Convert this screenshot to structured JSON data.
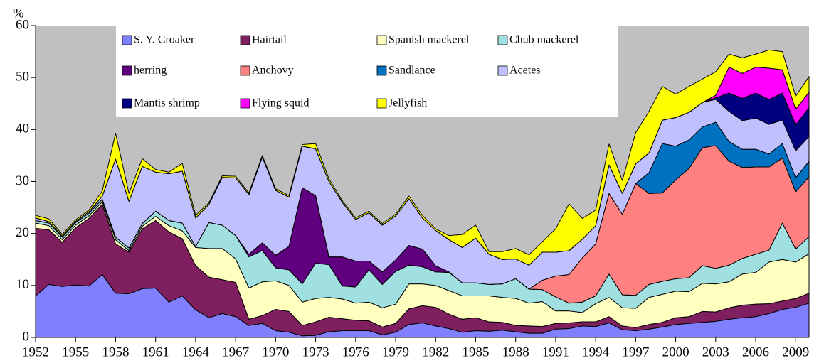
{
  "chart_data": {
    "type": "stacked_area",
    "y_label": "%",
    "x": [
      1952,
      1953,
      1954,
      1955,
      1956,
      1957,
      1958,
      1959,
      1960,
      1961,
      1962,
      1963,
      1964,
      1965,
      1966,
      1967,
      1968,
      1969,
      1970,
      1971,
      1972,
      1973,
      1974,
      1975,
      1976,
      1977,
      1978,
      1979,
      1980,
      1981,
      1982,
      1983,
      1984,
      1985,
      1986,
      1987,
      1988,
      1989,
      1990,
      1991,
      1992,
      1993,
      1994,
      1995,
      1996,
      1997,
      1998,
      1999,
      2000,
      2001,
      2002,
      2003,
      2004,
      2005,
      2006,
      2007,
      2008,
      2009,
      2010
    ],
    "xlim": [
      1952,
      2010
    ],
    "xticks": [
      1952,
      1955,
      1958,
      1961,
      1964,
      1967,
      1970,
      1973,
      1976,
      1979,
      1982,
      1985,
      1988,
      1991,
      1994,
      1997,
      2000,
      2003,
      2006,
      2009
    ],
    "ylim": [
      0,
      60
    ],
    "yticks": [
      0,
      10,
      20,
      30,
      40,
      50,
      60
    ],
    "series": [
      {
        "name": "S. Y. Croaker",
        "color": "#8080ff",
        "values": [
          8,
          10.2,
          9.8,
          10.1,
          9.9,
          12.1,
          8.5,
          8.4,
          9.4,
          9.5,
          6.8,
          8,
          5.3,
          3.8,
          4.6,
          4,
          2.3,
          2.7,
          1.3,
          1,
          0.3,
          0.4,
          1.1,
          1.3,
          1.3,
          1.3,
          0.5,
          1,
          2.5,
          2.8,
          2.2,
          1.7,
          1,
          1.3,
          1.2,
          1.4,
          1.1,
          0.8,
          0.8,
          1.6,
          1.7,
          2.2,
          2.1,
          2.8,
          1.5,
          1.3,
          1.6,
          2,
          2.5,
          2.7,
          2.9,
          3.1,
          3.5,
          3.8,
          4,
          4.6,
          5.4,
          5.8,
          6.6
        ]
      },
      {
        "name": "Hairtail",
        "color": "#7f1f5f",
        "values": [
          13,
          10.5,
          8.5,
          11,
          13,
          13.5,
          9.5,
          8,
          11.5,
          13,
          13.5,
          11,
          8.5,
          7.8,
          6.5,
          6.6,
          1.2,
          1.5,
          4.1,
          4,
          2,
          2.6,
          2.8,
          2.3,
          2,
          1.9,
          1.5,
          1.7,
          3,
          3.3,
          3.6,
          2.8,
          2.5,
          2.5,
          1.8,
          1.5,
          1.2,
          1.4,
          1.3,
          1.1,
          1.1,
          0.8,
          0.9,
          1.2,
          0.7,
          0.6,
          0.9,
          0.9,
          1.3,
          1.3,
          2.1,
          1.8,
          2.2,
          2.4,
          2.4,
          1.9,
          1.6,
          1.7,
          1.9
        ]
      },
      {
        "name": "Spanish mackerel",
        "color": "#ffffc0",
        "values": [
          1,
          0.8,
          0.5,
          0.5,
          0.5,
          0.5,
          0.8,
          0.3,
          0.5,
          0.8,
          1.2,
          1.5,
          3.5,
          5.5,
          6,
          4.5,
          6,
          6.5,
          5.5,
          5,
          4.5,
          4.5,
          3.8,
          3.8,
          3.3,
          3.6,
          3.7,
          3.7,
          4.8,
          4.2,
          4.2,
          4.5,
          4.5,
          4.2,
          5,
          4.8,
          5.2,
          4.4,
          4.8,
          2.4,
          2.3,
          1.8,
          3.5,
          3.7,
          3.5,
          3.7,
          5.2,
          5.4,
          5.1,
          4.8,
          5.4,
          5.4,
          5,
          6,
          6.1,
          8,
          8,
          7,
          7.6
        ]
      },
      {
        "name": "Chub mackerel",
        "color": "#a0e0e0",
        "values": [
          0.5,
          0.5,
          0.5,
          0.5,
          0.5,
          0.5,
          0.5,
          0.5,
          0.5,
          1,
          1,
          1.5,
          0.2,
          5,
          4.5,
          4.5,
          6,
          6,
          2.5,
          3,
          3.5,
          6.8,
          6.3,
          2.5,
          3.1,
          6.2,
          4.5,
          6.3,
          3.6,
          3.3,
          2.6,
          3.5,
          2.5,
          2.5,
          2.2,
          2.6,
          3.8,
          2.7,
          2.3,
          2.7,
          1.5,
          2,
          1.5,
          4.5,
          2.5,
          2.5,
          2.5,
          2.5,
          2.4,
          2.7,
          3.4,
          3,
          3.2,
          3,
          3.5,
          2.3,
          7,
          2.5,
          3.3
        ]
      },
      {
        "name": "herring",
        "color": "#600080",
        "values": [
          0,
          0,
          0,
          0,
          0,
          0,
          0,
          0,
          0,
          0,
          0,
          0,
          0,
          0,
          0,
          0,
          0.5,
          1.5,
          2.4,
          4.5,
          18.5,
          13,
          1.5,
          5.6,
          5,
          1.7,
          2.4,
          2.2,
          3.8,
          3.4,
          1.2,
          0.1,
          0,
          0,
          0,
          0,
          0,
          0,
          0,
          0,
          0,
          0,
          0,
          0,
          0,
          0,
          0,
          0,
          0,
          0,
          0,
          0,
          0,
          0,
          0,
          0,
          0,
          0,
          0
        ]
      },
      {
        "name": "Anchovy",
        "color": "#ff8080",
        "values": [
          0,
          0,
          0,
          0,
          0,
          0,
          0,
          0,
          0,
          0,
          0,
          0,
          0,
          0,
          0,
          0,
          0,
          0,
          0,
          0,
          0,
          0,
          0,
          0,
          0,
          0,
          0,
          0,
          0,
          0,
          0,
          0,
          0,
          0,
          0,
          0,
          0,
          0,
          1.8,
          4,
          5.5,
          8.5,
          10,
          15.5,
          15.5,
          21.5,
          17.5,
          17,
          19,
          21,
          22.7,
          23.6,
          20,
          17.5,
          16.8,
          16,
          12.5,
          11,
          11.5
        ]
      },
      {
        "name": "Sandlance",
        "color": "#0070c0",
        "values": [
          0,
          0,
          0,
          0,
          0,
          0,
          0,
          0,
          0,
          0,
          0,
          0,
          0,
          0,
          0,
          0,
          0,
          0,
          0,
          0,
          0,
          0,
          0,
          0,
          0,
          0,
          0,
          0,
          0,
          0,
          0,
          0,
          0,
          0,
          0,
          0,
          0,
          0,
          0,
          0,
          0,
          0,
          0,
          0,
          0,
          0,
          4,
          9.5,
          6.5,
          5.5,
          4,
          4.5,
          3.8,
          3.5,
          3.4,
          2.5,
          2.8,
          2.7,
          3
        ]
      },
      {
        "name": "Acetes",
        "color": "#c0c0ff",
        "values": [
          0.5,
          0.3,
          0.2,
          0.2,
          0.3,
          0.6,
          15,
          9,
          11,
          7.5,
          9,
          10,
          5.5,
          3.5,
          9.2,
          11.1,
          11.5,
          16.5,
          12.5,
          9.5,
          8,
          9,
          14.5,
          10.5,
          8,
          9.3,
          9,
          8.5,
          9,
          6,
          6.8,
          6.2,
          6.8,
          8.6,
          5.8,
          4.7,
          3.8,
          4.6,
          5.4,
          4.6,
          4.6,
          3.6,
          3.5,
          5.5,
          4,
          3.8,
          3.8,
          4.5,
          5.5,
          5.3,
          4.7,
          4.4,
          5.8,
          5.5,
          6,
          5.7,
          4.5,
          5.2,
          4.8
        ]
      },
      {
        "name": "Mantis shrimp",
        "color": "#000080",
        "values": [
          0,
          0,
          0,
          0,
          0,
          0,
          0,
          0,
          0,
          0,
          0,
          0,
          0,
          0,
          0,
          0,
          0,
          0,
          0,
          0,
          0,
          0,
          0,
          0,
          0,
          0,
          0,
          0,
          0,
          0,
          0,
          0,
          0,
          0,
          0,
          0,
          0,
          0,
          0,
          0,
          0,
          0,
          0,
          0,
          0,
          0,
          0,
          0,
          0,
          0,
          0,
          0.3,
          3.5,
          4.3,
          4.8,
          4.8,
          5.2,
          5,
          5.5
        ]
      },
      {
        "name": "Flying squid",
        "color": "#ff00ff",
        "values": [
          0,
          0,
          0,
          0,
          0,
          0,
          0,
          0,
          0,
          0,
          0,
          0,
          0,
          0,
          0,
          0,
          0,
          0,
          0,
          0,
          0,
          0,
          0,
          0,
          0,
          0,
          0,
          0,
          0,
          0,
          0,
          0,
          0,
          0,
          0,
          0,
          0,
          0,
          0,
          0,
          0,
          0,
          0,
          0,
          0,
          0,
          0,
          0,
          0,
          0,
          0,
          0.5,
          5,
          4.8,
          5,
          6,
          4.5,
          3,
          3
        ]
      },
      {
        "name": "Jellyfish",
        "color": "#ffff00",
        "values": [
          0.5,
          0.5,
          0.3,
          0.3,
          0.3,
          1,
          5,
          1.5,
          1.5,
          0.5,
          0.3,
          1.5,
          0.5,
          0.3,
          0.3,
          0.3,
          0.3,
          0.3,
          0.3,
          0.3,
          0.3,
          1,
          0.5,
          0.3,
          0.3,
          0.3,
          0.3,
          0.3,
          0.5,
          0.5,
          0.3,
          0.8,
          2.5,
          2.5,
          0.5,
          1.5,
          2,
          2,
          2,
          4.5,
          9,
          4,
          3,
          4,
          2.5,
          6,
          8,
          6.5,
          4.5,
          5,
          4.5,
          4.5,
          2.5,
          3,
          2.5,
          3.5,
          3.5,
          2.5,
          3
        ]
      }
    ],
    "legend": "top-left"
  }
}
